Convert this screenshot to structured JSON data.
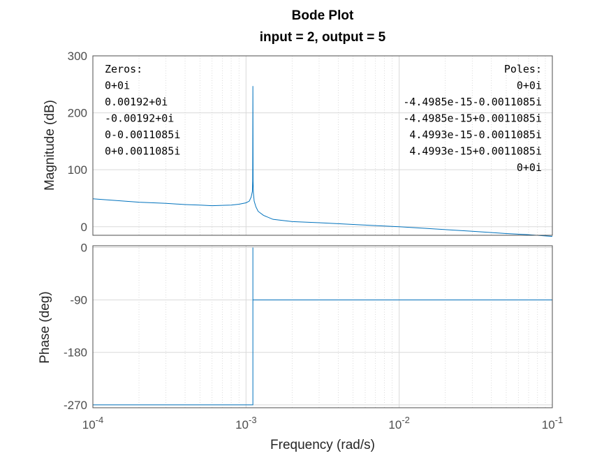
{
  "chart_data": {
    "type": "line",
    "title": "Bode Plot",
    "subtitle": "input = 2, output = 5",
    "xlabel": "Frequency  (rad/s)",
    "xscale": "log",
    "xlim": [
      0.0001,
      0.1
    ],
    "xtick_labels": [
      "10-4",
      "10-3",
      "10-2",
      "10-1"
    ],
    "xtick_values": [
      0.0001,
      0.001,
      0.01,
      0.1
    ],
    "grid": true,
    "series_color": "#0072bd",
    "panels": [
      {
        "name": "magnitude",
        "ylabel": "Magnitude (dB)",
        "ylim": [
          -15,
          300
        ],
        "yticks": [
          0,
          100,
          200,
          300
        ],
        "series": [
          {
            "x": [
              0.0001,
              0.0002,
              0.0003,
              0.0004,
              0.0005,
              0.0006,
              0.0007,
              0.0008,
              0.0009,
              0.001,
              0.00105,
              0.00108,
              0.0011,
              0.001105,
              0.0011085,
              0.001112,
              0.001117,
              0.00113,
              0.00116,
              0.0012,
              0.0013,
              0.0015,
              0.002,
              0.003,
              0.005,
              0.007,
              0.01,
              0.02,
              0.03,
              0.05,
              0.07,
              0.1
            ],
            "y": [
              49,
              43,
              41,
              39,
              38,
              37,
              37.5,
              38,
              39.5,
              42,
              45,
              52,
              62,
              80,
              247,
              80,
              60,
              45,
              35,
              27,
              20,
              13,
              9,
              7,
              4,
              2,
              0,
              -5,
              -8,
              -12,
              -14,
              -17
            ]
          }
        ]
      },
      {
        "name": "phase",
        "ylabel": "Phase (deg)",
        "ylim": [
          -275,
          3
        ],
        "yticks": [
          0,
          -90,
          -180,
          -270
        ],
        "series": [
          {
            "x": [
              0.0001,
              0.0011085,
              0.0011085,
              0.0011085,
              0.1
            ],
            "y": [
              -270,
              -270,
              0,
              -90,
              -90
            ]
          }
        ]
      }
    ],
    "annotations": {
      "zeros_header": "Zeros:",
      "zeros": [
        "0+0i",
        "0.00192+0i",
        "-0.00192+0i",
        "0-0.0011085i",
        "0+0.0011085i"
      ],
      "poles_header": "Poles:",
      "poles": [
        "0+0i",
        "-4.4985e-15-0.0011085i",
        "-4.4985e-15+0.0011085i",
        "4.4993e-15-0.0011085i",
        "4.4993e-15+0.0011085i",
        "0+0i"
      ]
    }
  }
}
